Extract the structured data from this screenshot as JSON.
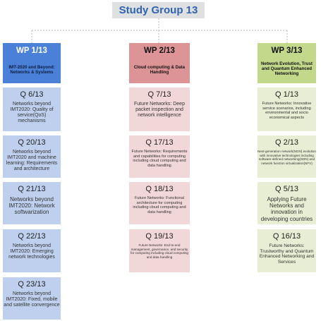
{
  "title": "Study Group 13",
  "working_parties": [
    {
      "wp": "WP 1/13",
      "name": "IMT-2020 and Beyond: Networks & Systems",
      "questions": [
        {
          "q": "Q 6/13",
          "desc": "Networks beyond IMT2020: Quality of service(QoS) mechanisms"
        },
        {
          "q": "Q 20/13",
          "desc": "Networks beyond IMT2020 and machine learning: Requirements and architecture"
        },
        {
          "q": "Q 21/13",
          "desc": "Networks beyond IMT2020: Network softwarization"
        },
        {
          "q": "Q 22/13",
          "desc": "Networks beyond IMT2020: Emerging network technologies"
        },
        {
          "q": "Q 23/13",
          "desc": "Networks beyond IMT2020: Fixed, mobile and satellite convergence"
        }
      ]
    },
    {
      "wp": "WP 2/13",
      "name": "Cloud computing & Data Handling",
      "questions": [
        {
          "q": "Q 7/13",
          "desc": "Future Networks: Deep packet inspection and network intelligence"
        },
        {
          "q": "Q 17/13",
          "desc": "Future Networks: Requirements and capabilities for computing including cloud computing and data handling"
        },
        {
          "q": "Q 18/13",
          "desc": "Future Networks: Functional architecture for computing including cloud computing and data handling"
        },
        {
          "q": "Q 19/13",
          "desc": "Future Networks: End-to-end management, governance, and security for computing including cloud computing and data handling"
        }
      ]
    },
    {
      "wp": "WP 3/13",
      "name": "Network Evolution, Trust and Quantum Enhanced Networking",
      "questions": [
        {
          "q": "Q 1/13",
          "desc": "Future Networks: Innovative service scenarios, including environmental and socio economical aspects"
        },
        {
          "q": "Q 2/13",
          "desc": "Next-generation network(NGN) evolution with innovative technologies including software-defined networking(SDN) and network function virtualization(NFV)"
        },
        {
          "q": "Q 5/13",
          "desc": "Applying Future Networks and innovation in developing countries"
        },
        {
          "q": "Q 16/13",
          "desc": "Future Networks: Trustworthy and Quantum Enhanced Networking and Services"
        }
      ]
    }
  ],
  "colors": {
    "title_text": "#2e63b0",
    "title_bg": "#dfe0e2",
    "wp1": "#4a80d8",
    "wp1_light": "#bed0ee",
    "wp2": "#dd9496",
    "wp2_light": "#f2d7d8",
    "wp3": "#c2d88b",
    "wp3_light": "#e7eed3",
    "connector": "#bbbbbb"
  }
}
